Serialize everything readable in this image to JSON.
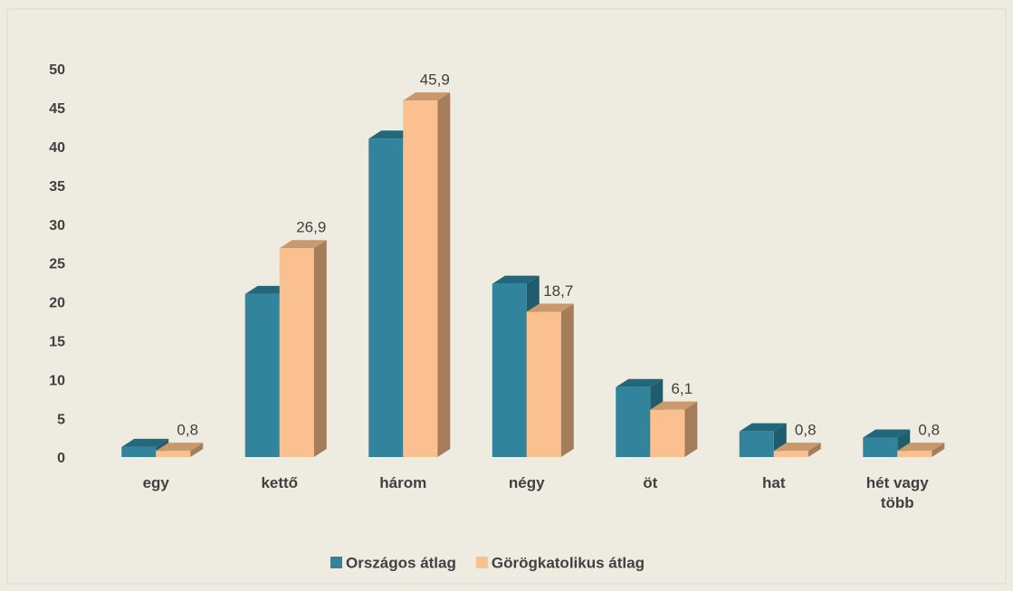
{
  "chart_data": {
    "type": "bar3d",
    "categories": [
      "egy",
      "kettő",
      "három",
      "négy",
      "öt",
      "hat",
      "hét vagy több"
    ],
    "series": [
      {
        "name": "Országos átlag",
        "color": "#31849b",
        "side": "#1f5c6c",
        "top": "#23687a",
        "values": [
          1.3,
          21,
          41,
          22.3,
          9,
          3.3,
          2.5
        ]
      },
      {
        "name": "Görögkatolikus átlag",
        "color": "#fac08f",
        "side": "#a67d5b",
        "top": "#c9996c",
        "values": [
          0.8,
          26.9,
          45.9,
          18.7,
          6.1,
          0.8,
          0.8
        ],
        "value_labels": [
          "0,8",
          "26,9",
          "45,9",
          "18,7",
          "6,1",
          "0,8",
          "0,8"
        ]
      }
    ],
    "ylim": [
      0,
      50
    ],
    "yticks": [
      0,
      5,
      10,
      15,
      20,
      25,
      30,
      35,
      40,
      45,
      50
    ]
  }
}
